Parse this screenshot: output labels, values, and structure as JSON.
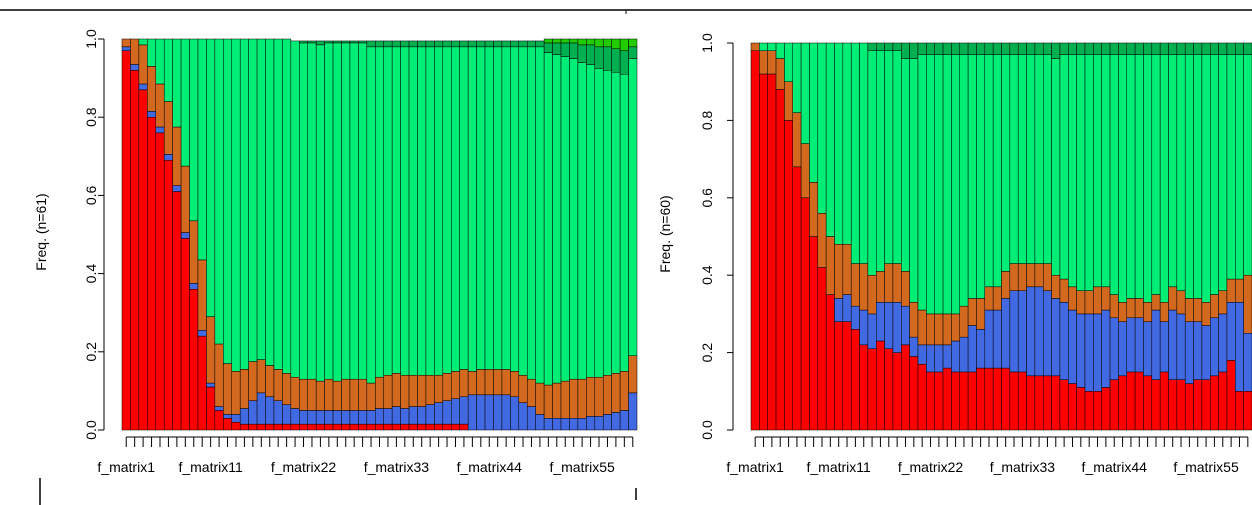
{
  "chart_data": [
    {
      "type": "bar",
      "stacked": true,
      "title": "",
      "xlabel": "",
      "ylabel": "Freq. (n=61)",
      "ylim": [
        0,
        1
      ],
      "yticks": [
        "0.0",
        "0.2",
        "0.4",
        "0.6",
        "0.8",
        "1.0"
      ],
      "bar_count": 61,
      "category_prefix": "f_matrix",
      "x_tick_labels": [
        "f_matrix1",
        "f_matrix11",
        "f_matrix22",
        "f_matrix33",
        "f_matrix44",
        "f_matrix55"
      ],
      "series_colors": {
        "red": "#ff0000",
        "blue": "#4169e1",
        "orange": "#d2691e",
        "green": "#00ee76",
        "dark_green": "#00b050",
        "bright_green": "#22cc00"
      },
      "series": [
        {
          "color": "red",
          "values": [
            0.97,
            0.92,
            0.87,
            0.8,
            0.76,
            0.69,
            0.61,
            0.49,
            0.36,
            0.24,
            0.11,
            0.05,
            0.03,
            0.02,
            0.015,
            0.015,
            0.015,
            0.015,
            0.015,
            0.015,
            0.015,
            0.015,
            0.015,
            0.015,
            0.015,
            0.015,
            0.015,
            0.015,
            0.015,
            0.015,
            0.015,
            0.015,
            0.015,
            0.015,
            0.015,
            0.015,
            0.015,
            0.015,
            0.015,
            0.015,
            0.015,
            0,
            0,
            0,
            0,
            0,
            0,
            0,
            0,
            0,
            0,
            0,
            0,
            0,
            0,
            0,
            0,
            0,
            0,
            0,
            0
          ]
        },
        {
          "color": "blue",
          "values": [
            0.01,
            0.015,
            0.015,
            0.015,
            0.015,
            0.015,
            0.015,
            0.015,
            0.015,
            0.015,
            0.01,
            0.01,
            0.01,
            0.02,
            0.04,
            0.06,
            0.08,
            0.07,
            0.06,
            0.05,
            0.04,
            0.035,
            0.035,
            0.035,
            0.035,
            0.035,
            0.035,
            0.035,
            0.035,
            0.035,
            0.04,
            0.04,
            0.045,
            0.04,
            0.045,
            0.045,
            0.05,
            0.055,
            0.06,
            0.065,
            0.07,
            0.09,
            0.09,
            0.09,
            0.09,
            0.09,
            0.085,
            0.07,
            0.06,
            0.04,
            0.03,
            0.03,
            0.03,
            0.03,
            0.03,
            0.035,
            0.035,
            0.04,
            0.045,
            0.05,
            0.095
          ]
        },
        {
          "color": "orange",
          "values": [
            0.02,
            0.065,
            0.1,
            0.115,
            0.11,
            0.135,
            0.15,
            0.17,
            0.16,
            0.18,
            0.17,
            0.16,
            0.13,
            0.11,
            0.1,
            0.1,
            0.085,
            0.08,
            0.08,
            0.08,
            0.08,
            0.08,
            0.08,
            0.075,
            0.08,
            0.075,
            0.08,
            0.08,
            0.08,
            0.07,
            0.08,
            0.085,
            0.085,
            0.085,
            0.08,
            0.08,
            0.075,
            0.07,
            0.07,
            0.07,
            0.07,
            0.06,
            0.065,
            0.065,
            0.065,
            0.065,
            0.065,
            0.07,
            0.07,
            0.08,
            0.085,
            0.09,
            0.095,
            0.1,
            0.1,
            0.1,
            0.1,
            0.1,
            0.1,
            0.1,
            0.095
          ]
        },
        {
          "color": "green",
          "values": [
            0,
            0,
            0.015,
            0.07,
            0.115,
            0.16,
            0.225,
            0.325,
            0.465,
            0.565,
            0.71,
            0.78,
            0.83,
            0.85,
            0.85,
            0.84,
            0.84,
            0.85,
            0.85,
            0.855,
            0.86,
            0.86,
            0.86,
            0.86,
            0.86,
            0.865,
            0.86,
            0.86,
            0.86,
            0.86,
            0.845,
            0.84,
            0.835,
            0.84,
            0.84,
            0.84,
            0.84,
            0.84,
            0.835,
            0.83,
            0.825,
            0.83,
            0.825,
            0.825,
            0.825,
            0.825,
            0.83,
            0.84,
            0.85,
            0.86,
            0.85,
            0.84,
            0.83,
            0.82,
            0.81,
            0.8,
            0.79,
            0.78,
            0.77,
            0.76,
            0.76
          ]
        },
        {
          "color": "dark_green",
          "values": [
            0,
            0,
            0,
            0,
            0,
            0,
            0,
            0,
            0,
            0,
            0,
            0,
            0,
            0,
            0,
            0,
            0,
            0,
            0,
            0,
            0,
            0.005,
            0.005,
            0.01,
            0.005,
            0.005,
            0.005,
            0.005,
            0.005,
            0.015,
            0.015,
            0.015,
            0.015,
            0.015,
            0.015,
            0.015,
            0.015,
            0.015,
            0.015,
            0.015,
            0.015,
            0.015,
            0.015,
            0.015,
            0.015,
            0.015,
            0.015,
            0.015,
            0.015,
            0.015,
            0.025,
            0.03,
            0.035,
            0.04,
            0.045,
            0.05,
            0.055,
            0.06,
            0.06,
            0.06,
            0.03
          ]
        },
        {
          "color": "bright_green",
          "values": [
            0,
            0,
            0,
            0,
            0,
            0,
            0,
            0,
            0,
            0,
            0,
            0,
            0,
            0,
            0,
            0,
            0,
            0,
            0,
            0,
            0,
            0,
            0,
            0,
            0,
            0,
            0,
            0,
            0,
            0,
            0,
            0,
            0,
            0,
            0,
            0,
            0,
            0,
            0,
            0,
            0,
            0,
            0,
            0,
            0,
            0,
            0,
            0,
            0,
            0,
            0.01,
            0.01,
            0.01,
            0.01,
            0.015,
            0.015,
            0.02,
            0.02,
            0.025,
            0.03,
            0.02
          ]
        }
      ]
    },
    {
      "type": "bar",
      "stacked": true,
      "title": "",
      "xlabel": "",
      "ylabel": "Freq. (n=60)",
      "ylim": [
        0,
        1
      ],
      "yticks": [
        "0.0",
        "0.2",
        "0.4",
        "0.6",
        "0.8",
        "1.0"
      ],
      "bar_count": 60,
      "category_prefix": "f_matrix",
      "x_tick_labels": [
        "f_matrix1",
        "f_matrix11",
        "f_matrix22",
        "f_matrix33",
        "f_matrix44",
        "f_matrix55"
      ],
      "series_colors": {
        "red": "#ff0000",
        "blue": "#4169e1",
        "orange": "#d2691e",
        "green": "#00ee76",
        "dark_green": "#00b050"
      },
      "series": [
        {
          "color": "red",
          "values": [
            0.98,
            0.92,
            0.92,
            0.88,
            0.8,
            0.68,
            0.6,
            0.5,
            0.42,
            0.35,
            0.28,
            0.28,
            0.26,
            0.22,
            0.21,
            0.23,
            0.21,
            0.2,
            0.22,
            0.19,
            0.17,
            0.15,
            0.15,
            0.16,
            0.15,
            0.15,
            0.15,
            0.16,
            0.16,
            0.16,
            0.16,
            0.15,
            0.15,
            0.14,
            0.14,
            0.14,
            0.14,
            0.13,
            0.12,
            0.11,
            0.1,
            0.1,
            0.11,
            0.13,
            0.14,
            0.15,
            0.15,
            0.14,
            0.13,
            0.15,
            0.13,
            0.13,
            0.12,
            0.13,
            0.13,
            0.14,
            0.15,
            0.18,
            0.1,
            0.1
          ]
        },
        {
          "color": "blue",
          "values": [
            0,
            0,
            0,
            0,
            0,
            0,
            0,
            0,
            0,
            0,
            0.06,
            0.07,
            0.06,
            0.09,
            0.09,
            0.1,
            0.12,
            0.13,
            0.1,
            0.05,
            0.05,
            0.07,
            0.07,
            0.06,
            0.08,
            0.09,
            0.12,
            0.1,
            0.15,
            0.15,
            0.18,
            0.21,
            0.21,
            0.23,
            0.23,
            0.22,
            0.2,
            0.2,
            0.19,
            0.19,
            0.2,
            0.2,
            0.2,
            0.16,
            0.14,
            0.14,
            0.14,
            0.14,
            0.18,
            0.13,
            0.18,
            0.17,
            0.16,
            0.15,
            0.14,
            0.15,
            0.15,
            0.15,
            0.23,
            0.15
          ]
        },
        {
          "color": "orange",
          "values": [
            0.02,
            0.06,
            0.06,
            0.08,
            0.1,
            0.14,
            0.14,
            0.14,
            0.14,
            0.15,
            0.14,
            0.13,
            0.11,
            0.12,
            0.1,
            0.08,
            0.1,
            0.1,
            0.09,
            0.09,
            0.09,
            0.08,
            0.08,
            0.08,
            0.07,
            0.08,
            0.07,
            0.08,
            0.06,
            0.06,
            0.07,
            0.07,
            0.07,
            0.06,
            0.06,
            0.07,
            0.06,
            0.06,
            0.06,
            0.06,
            0.06,
            0.07,
            0.06,
            0.06,
            0.05,
            0.05,
            0.05,
            0.05,
            0.04,
            0.05,
            0.06,
            0.06,
            0.06,
            0.06,
            0.06,
            0.06,
            0.06,
            0.06,
            0.06,
            0.15
          ]
        },
        {
          "color": "green",
          "values": [
            0,
            0.02,
            0.02,
            0.04,
            0.1,
            0.18,
            0.26,
            0.36,
            0.44,
            0.5,
            0.52,
            0.52,
            0.57,
            0.57,
            0.58,
            0.57,
            0.55,
            0.55,
            0.55,
            0.63,
            0.66,
            0.67,
            0.67,
            0.67,
            0.67,
            0.65,
            0.63,
            0.63,
            0.6,
            0.6,
            0.56,
            0.54,
            0.54,
            0.54,
            0.54,
            0.54,
            0.56,
            0.58,
            0.6,
            0.61,
            0.61,
            0.6,
            0.6,
            0.62,
            0.64,
            0.63,
            0.63,
            0.64,
            0.62,
            0.64,
            0.6,
            0.61,
            0.63,
            0.63,
            0.64,
            0.62,
            0.61,
            0.58,
            0.58,
            0.57
          ]
        },
        {
          "color": "dark_green",
          "values": [
            0,
            0,
            0,
            0,
            0,
            0,
            0,
            0,
            0,
            0,
            0,
            0,
            0,
            0,
            0.02,
            0.02,
            0.02,
            0.02,
            0.04,
            0.04,
            0.03,
            0.03,
            0.03,
            0.03,
            0.03,
            0.03,
            0.03,
            0.03,
            0.03,
            0.03,
            0.03,
            0.03,
            0.03,
            0.03,
            0.03,
            0.03,
            0.04,
            0.03,
            0.03,
            0.03,
            0.03,
            0.03,
            0.03,
            0.03,
            0.03,
            0.03,
            0.03,
            0.03,
            0.03,
            0.03,
            0.03,
            0.03,
            0.03,
            0.03,
            0.03,
            0.03,
            0.03,
            0.03,
            0.03,
            0.03
          ]
        }
      ]
    }
  ]
}
